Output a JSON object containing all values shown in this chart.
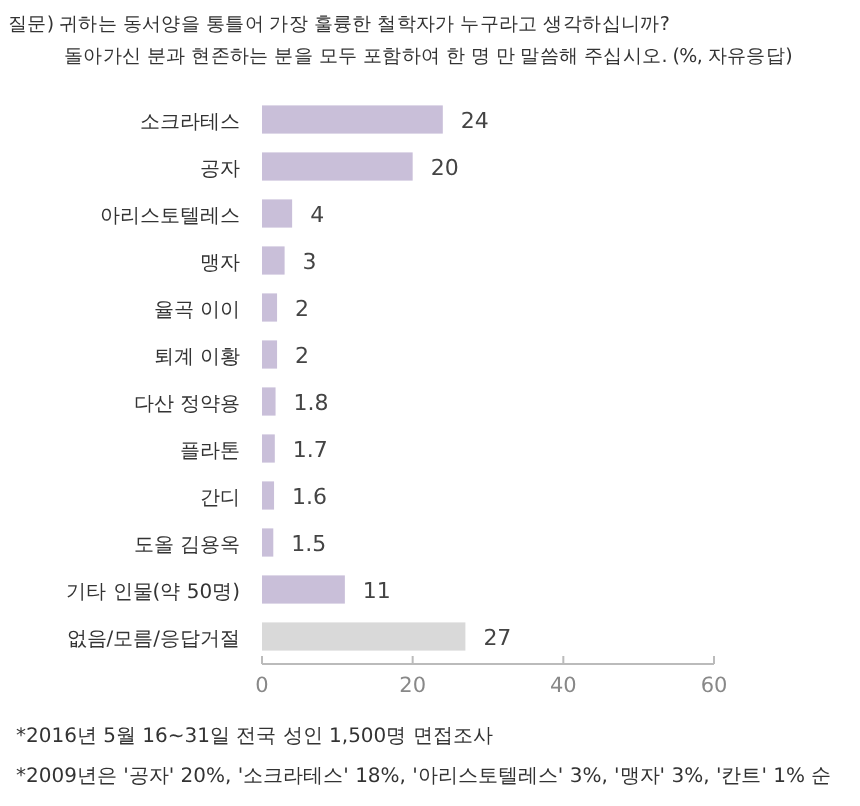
{
  "chart_data": {
    "type": "bar",
    "orientation": "horizontal",
    "title": "질문) 귀하는 동서양을 통틀어 가장 훌륭한 철학자가 누구라고 생각하십니까?",
    "subtitle": "돌아가신 분과 현존하는 분을 모두 포함하여 한 명 만 말씀해 주십시오. (%, 자유응답)",
    "categories": [
      "소크라테스",
      "공자",
      "아리스토텔레스",
      "맹자",
      "율곡 이이",
      "퇴계 이황",
      "다산 정약용",
      "플라톤",
      "간디",
      "도올 김용옥",
      "기타 인물(약 50명)",
      "없음/모름/응답거절"
    ],
    "values": [
      24,
      20,
      4,
      3,
      2,
      2,
      1.8,
      1.7,
      1.6,
      1.5,
      11,
      27
    ],
    "colors": [
      "#c9bfd9",
      "#c9bfd9",
      "#c9bfd9",
      "#c9bfd9",
      "#c9bfd9",
      "#c9bfd9",
      "#c9bfd9",
      "#c9bfd9",
      "#c9bfd9",
      "#c9bfd9",
      "#c9bfd9",
      "#d9d9d9"
    ],
    "xlim": [
      0,
      60
    ],
    "xticks": [
      0,
      20,
      40,
      60
    ],
    "data_labels": true,
    "annotations": [
      "*2016년 5월 16~31일 전국 성인 1,500명 면접조사",
      "*2009년은 '공자' 20%, '소크라테스' 18%, '아리스토텔레스' 3%, '맹자' 3%, '칸트' 1% 순"
    ]
  }
}
